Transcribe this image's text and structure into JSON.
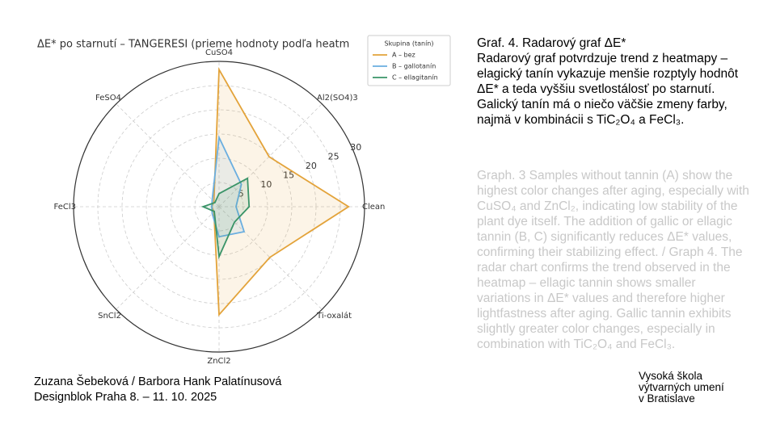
{
  "chart_data": {
    "type": "radar",
    "title": "ΔE* po starnutí – TANGERESI (prieme hodnoty podľa heatm",
    "categories": [
      "Clean",
      "Al2(SO4)3",
      "CuSO4",
      "FeSO4",
      "FeCl3",
      "SnCl2",
      "ZnCl2",
      "Ti-oxalát"
    ],
    "ylim": [
      0,
      30
    ],
    "yticks": [
      5,
      10,
      15,
      20,
      25,
      30
    ],
    "grid": true,
    "legend_title": "Skupina (tanín)",
    "legend": "upper right",
    "series": [
      {
        "name": "A – bez",
        "color": "#e3a33a",
        "values": [
          26.7,
          14.6,
          28.3,
          1.5,
          1.5,
          1.5,
          22.3,
          14.8
        ]
      },
      {
        "name": "B – gallotanín",
        "color": "#6aaee0",
        "values": [
          3.5,
          6.5,
          14.3,
          2,
          1.5,
          2,
          6.2,
          7.3
        ]
      },
      {
        "name": "C – ellagitanín",
        "color": "#3a9468",
        "values": [
          6.2,
          8.3,
          2.7,
          1.2,
          3.3,
          1.4,
          10.3,
          4.5
        ]
      }
    ]
  },
  "text": {
    "heading": "Graf. 4. Radarový graf ΔE*",
    "body": "Radarový graf potvrdzuje trend z heatmapy – elagický tanín vykazuje menšie rozptyly hodnôt ΔE* a teda vyššiu svetlostálosť po starnutí. Galický tanín má o niečo väčšie zmeny farby, najmä v kombinácii s TiC₂O₄ a FeCl₃.",
    "english": "Graph. 3 Samples without tannin (A) show the highest color changes after aging, especially with CuSO₄ and ZnCl₂, indicating low stability of the plant dye itself. The addition of gallic or ellagic tannin (B, C) significantly reduces ΔE* values, confirming their stabilizing effect. / Graph 4. The radar chart confirms the trend observed in the heatmap – ellagic tannin shows smaller variations in ΔE* values and therefore higher lightfastness after aging. Gallic tannin exhibits slightly greater color changes, especially in combination with TiC₂O₄ and FeCl₃.",
    "authors": "Zuzana Šebeková / Barbora Hank Palatínusová",
    "event": "Designblok Praha 8. – 11. 10. 2025",
    "school": [
      "Vysoká škola",
      "výtvarných umení",
      "v Bratislave"
    ]
  }
}
